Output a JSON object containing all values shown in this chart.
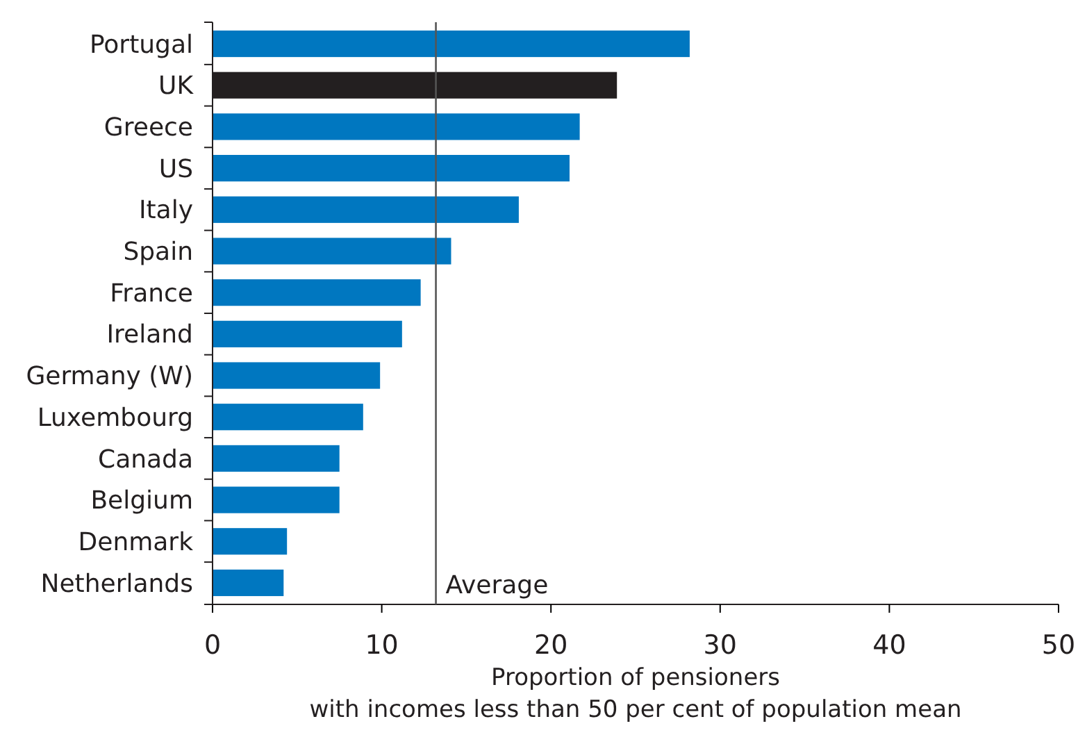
{
  "chart_data": {
    "type": "bar",
    "orientation": "horizontal",
    "categories": [
      "Portugal",
      "UK",
      "Greece",
      "US",
      "Italy",
      "Spain",
      "France",
      "Ireland",
      "Germany (W)",
      "Luxembourg",
      "Canada",
      "Belgium",
      "Denmark",
      "Netherlands"
    ],
    "values": [
      28.2,
      23.9,
      21.7,
      21.1,
      18.1,
      14.1,
      12.3,
      11.2,
      9.9,
      8.9,
      7.5,
      7.5,
      4.4,
      4.2
    ],
    "colors": [
      "#0077c0",
      "#231f20",
      "#0077c0",
      "#0077c0",
      "#0077c0",
      "#0077c0",
      "#0077c0",
      "#0077c0",
      "#0077c0",
      "#0077c0",
      "#0077c0",
      "#0077c0",
      "#0077c0",
      "#0077c0"
    ],
    "xlim": [
      0,
      50
    ],
    "xticks": [
      0,
      10,
      20,
      30,
      40,
      50
    ],
    "xlabel": "Proportion of pensioners\nwith incomes less than 50 per cent of population mean",
    "ref_lines": [
      {
        "axis": "x",
        "value": 13.2,
        "label": "Average",
        "color": "#555555"
      }
    ],
    "grid": false
  }
}
